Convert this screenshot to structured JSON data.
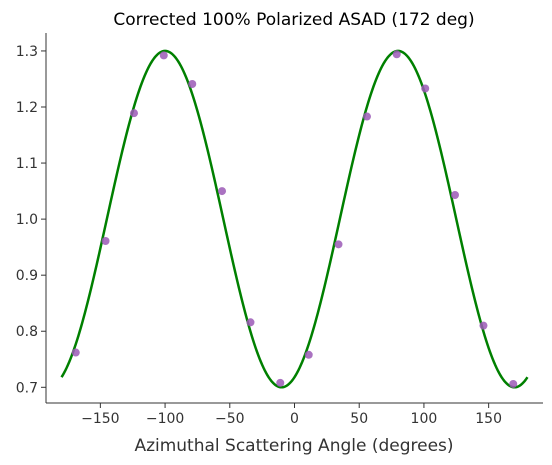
{
  "chart_data": {
    "type": "scatter",
    "title": "Corrected 100% Polarized ASAD (172 deg)",
    "xlabel": "Azimuthal Scattering Angle (degrees)",
    "ylabel": "",
    "xlim": [
      -192,
      192
    ],
    "ylim": [
      0.672,
      1.332
    ],
    "x_ticks": [
      -150,
      -100,
      -50,
      0,
      50,
      100,
      150
    ],
    "y_ticks": [
      0.7,
      0.8,
      0.9,
      1.0,
      1.1,
      1.2,
      1.3
    ],
    "x_tick_labels": [
      "−150",
      "−100",
      "−50",
      "0",
      "50",
      "100",
      "150"
    ],
    "y_tick_labels": [
      "0.7",
      "0.8",
      "0.9",
      "1.0",
      "1.1",
      "1.2",
      "1.3"
    ],
    "grid": false,
    "series": [
      {
        "kind": "points",
        "color": "#9b59b6",
        "points": [
          {
            "x": -169,
            "y": 0.762
          },
          {
            "x": -146,
            "y": 0.961
          },
          {
            "x": -124,
            "y": 1.189
          },
          {
            "x": -101,
            "y": 1.292
          },
          {
            "x": -79,
            "y": 1.241
          },
          {
            "x": -56,
            "y": 1.05
          },
          {
            "x": -34,
            "y": 0.816
          },
          {
            "x": -11,
            "y": 0.708
          },
          {
            "x": 11,
            "y": 0.758
          },
          {
            "x": 34,
            "y": 0.955
          },
          {
            "x": 56,
            "y": 1.183
          },
          {
            "x": 79,
            "y": 1.294
          },
          {
            "x": 101,
            "y": 1.233
          },
          {
            "x": 124,
            "y": 1.043
          },
          {
            "x": 146,
            "y": 0.81
          },
          {
            "x": 169,
            "y": 0.706
          }
        ]
      },
      {
        "kind": "fit-curve",
        "color": "#008000",
        "offset": 1.0,
        "amplitude": 0.3,
        "phase_deg": 10,
        "x_range": [
          -180,
          180
        ]
      }
    ]
  }
}
